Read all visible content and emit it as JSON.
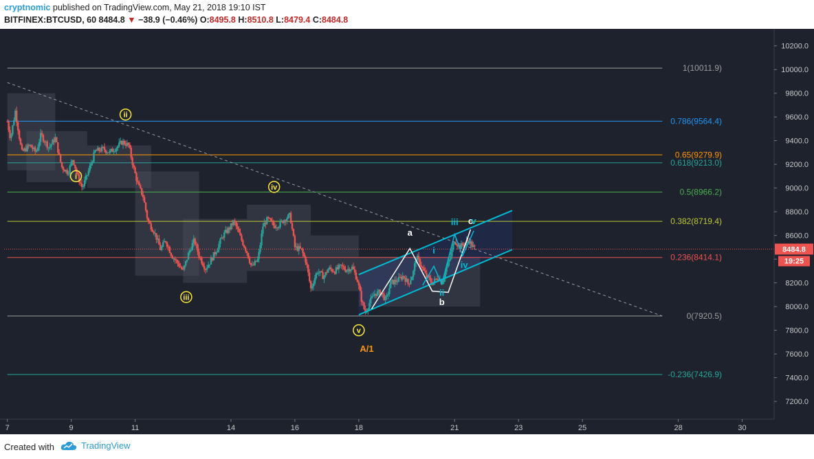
{
  "header": {
    "author": "cryptnomic",
    "published_text": "published on TradingView.com, May 21, 2018 19:10 IST",
    "symbol": "BITFINEX:BTCUSD, 60",
    "last": "8484.8",
    "change_arrow": "▼",
    "change": "−38.9 (−0.46%)",
    "o_label": "O:",
    "o_value": "8495.8",
    "h_label": "H:",
    "h_value": "8510.8",
    "l_label": "L:",
    "l_value": "8479.4",
    "c_label": "C:",
    "c_value": "8484.8"
  },
  "footer": {
    "created_with": "Created with",
    "brand": "TradingView",
    "brand_icon": "tradingview-cloud-icon"
  },
  "colors": {
    "background": "#1e222d",
    "bull": "#26a69a",
    "bear": "#ef5350",
    "channel": "#00bcd4",
    "wave_yellow": "#ffeb3b",
    "wave_orange": "#ff9800"
  },
  "chart_data": {
    "type": "candlestick",
    "ylim": [
      7050,
      10320
    ],
    "xlim": [
      6.9,
      31
    ],
    "x_ticks": [
      {
        "x": 7,
        "label": "7"
      },
      {
        "x": 9,
        "label": "9"
      },
      {
        "x": 11,
        "label": "11"
      },
      {
        "x": 14,
        "label": "14"
      },
      {
        "x": 16,
        "label": "16"
      },
      {
        "x": 18,
        "label": "18"
      },
      {
        "x": 21,
        "label": "21"
      },
      {
        "x": 23,
        "label": "23"
      },
      {
        "x": 25,
        "label": "25"
      },
      {
        "x": 28,
        "label": "28"
      },
      {
        "x": 30,
        "label": "30"
      }
    ],
    "y_ticks": [
      {
        "v": 10200,
        "label": "10200.0"
      },
      {
        "v": 10000,
        "label": "10000.0"
      },
      {
        "v": 9800,
        "label": "9800.0"
      },
      {
        "v": 9600,
        "label": "9600.0"
      },
      {
        "v": 9400,
        "label": "9400.0"
      },
      {
        "v": 9200,
        "label": "9200.0"
      },
      {
        "v": 9000,
        "label": "9000.0"
      },
      {
        "v": 8800,
        "label": "8800.0"
      },
      {
        "v": 8600,
        "label": "8600.0"
      },
      {
        "v": 8400,
        "label": "8400.0"
      },
      {
        "v": 8200,
        "label": "8200.0"
      },
      {
        "v": 8000,
        "label": "8000.0"
      },
      {
        "v": 7800,
        "label": "7800.0"
      },
      {
        "v": 7600,
        "label": "7600.0"
      },
      {
        "v": 7400,
        "label": "7400.0"
      },
      {
        "v": 7200,
        "label": "7200.0"
      }
    ],
    "fib_levels": [
      {
        "label": "1(10011.9)",
        "value": 10011.9,
        "color": "#9e9e9e"
      },
      {
        "label": "0.786(9564.4)",
        "value": 9564.4,
        "color": "#2196f3"
      },
      {
        "label": "0.65(9279.9)",
        "value": 9279.9,
        "color": "#ff9800"
      },
      {
        "label": "0.618(9213.0)",
        "value": 9213.0,
        "color": "#26a69a"
      },
      {
        "label": "0.5(8966.2)",
        "value": 8966.2,
        "color": "#4caf50"
      },
      {
        "label": "0.382(8719.4)",
        "value": 8719.4,
        "color": "#c0ca33"
      },
      {
        "label": "0.236(8414.1)",
        "value": 8414.1,
        "color": "#ef5350"
      },
      {
        "label": "0(7920.5)",
        "value": 7920.5,
        "color": "#9e9e9e"
      },
      {
        "label": "-0.236(7426.9)",
        "value": 7426.9,
        "color": "#26a69a"
      }
    ],
    "fib_x_range": [
      7,
      27.5
    ],
    "path_points": [
      [
        7.0,
        9560
      ],
      [
        7.1,
        9420
      ],
      [
        7.25,
        9650
      ],
      [
        7.45,
        9300
      ],
      [
        7.7,
        9360
      ],
      [
        7.9,
        9300
      ],
      [
        8.05,
        9450
      ],
      [
        8.3,
        9340
      ],
      [
        8.5,
        9420
      ],
      [
        8.7,
        9180
      ],
      [
        8.9,
        9130
      ],
      [
        9.05,
        9250
      ],
      [
        9.2,
        9100
      ],
      [
        9.35,
        9000
      ],
      [
        9.55,
        9150
      ],
      [
        9.75,
        9310
      ],
      [
        10.0,
        9330
      ],
      [
        10.2,
        9300
      ],
      [
        10.4,
        9340
      ],
      [
        10.6,
        9390
      ],
      [
        10.8,
        9360
      ],
      [
        10.95,
        9170
      ],
      [
        11.1,
        9020
      ],
      [
        11.25,
        8930
      ],
      [
        11.4,
        8720
      ],
      [
        11.6,
        8630
      ],
      [
        11.8,
        8480
      ],
      [
        11.95,
        8560
      ],
      [
        12.15,
        8430
      ],
      [
        12.35,
        8360
      ],
      [
        12.5,
        8300
      ],
      [
        12.7,
        8470
      ],
      [
        12.85,
        8560
      ],
      [
        13.0,
        8430
      ],
      [
        13.2,
        8320
      ],
      [
        13.35,
        8380
      ],
      [
        13.55,
        8480
      ],
      [
        13.75,
        8600
      ],
      [
        13.95,
        8660
      ],
      [
        14.1,
        8720
      ],
      [
        14.3,
        8580
      ],
      [
        14.5,
        8460
      ],
      [
        14.65,
        8330
      ],
      [
        14.85,
        8400
      ],
      [
        15.0,
        8680
      ],
      [
        15.15,
        8740
      ],
      [
        15.35,
        8680
      ],
      [
        15.5,
        8690
      ],
      [
        15.65,
        8730
      ],
      [
        15.85,
        8770
      ],
      [
        16.0,
        8500
      ],
      [
        16.2,
        8480
      ],
      [
        16.35,
        8380
      ],
      [
        16.5,
        8150
      ],
      [
        16.7,
        8300
      ],
      [
        16.9,
        8250
      ],
      [
        17.05,
        8320
      ],
      [
        17.25,
        8300
      ],
      [
        17.45,
        8340
      ],
      [
        17.6,
        8310
      ],
      [
        17.8,
        8330
      ],
      [
        17.95,
        8230
      ],
      [
        18.1,
        8040
      ],
      [
        18.2,
        7950
      ],
      [
        18.35,
        8040
      ],
      [
        18.5,
        8110
      ],
      [
        18.7,
        8120
      ],
      [
        18.85,
        8050
      ],
      [
        19.0,
        8200
      ],
      [
        19.2,
        8220
      ],
      [
        19.4,
        8260
      ],
      [
        19.55,
        8190
      ],
      [
        19.7,
        8280
      ],
      [
        19.8,
        8420
      ],
      [
        19.95,
        8350
      ],
      [
        20.1,
        8260
      ],
      [
        20.3,
        8200
      ],
      [
        20.5,
        8250
      ],
      [
        20.6,
        8200
      ],
      [
        20.75,
        8330
      ],
      [
        20.85,
        8400
      ],
      [
        21.0,
        8560
      ],
      [
        21.15,
        8500
      ],
      [
        21.3,
        8530
      ],
      [
        21.45,
        8560
      ],
      [
        21.55,
        8510
      ],
      [
        21.65,
        8485
      ]
    ],
    "cloud": [
      {
        "x0": 7.0,
        "x1": 8.5,
        "lo": 9150,
        "hi": 9800
      },
      {
        "x0": 7.6,
        "x1": 9.5,
        "lo": 9050,
        "hi": 9480
      },
      {
        "x0": 9.5,
        "x1": 11.5,
        "lo": 9000,
        "hi": 9360
      },
      {
        "x0": 11.0,
        "x1": 13.0,
        "lo": 8260,
        "hi": 9140
      },
      {
        "x0": 12.5,
        "x1": 14.5,
        "lo": 8200,
        "hi": 8740
      },
      {
        "x0": 14.5,
        "x1": 16.5,
        "lo": 8300,
        "hi": 8860
      },
      {
        "x0": 16.5,
        "x1": 18.0,
        "lo": 8130,
        "hi": 8600
      },
      {
        "x0": 18.0,
        "x1": 21.8,
        "lo": 8000,
        "hi": 8420
      }
    ],
    "trendline": {
      "x0": 7.0,
      "y0": 9890,
      "x1": 27.5,
      "y1": 7920
    },
    "channel": {
      "lower": {
        "x0": 18.0,
        "y0": 7930,
        "x1": 22.8,
        "y1": 8480
      },
      "upper": {
        "x0": 18.0,
        "y0": 8270,
        "x1": 22.8,
        "y1": 8810
      }
    },
    "zigzag_white": [
      [
        18.4,
        7980
      ],
      [
        19.6,
        8490
      ],
      [
        20.3,
        8130
      ],
      [
        20.8,
        8120
      ],
      [
        21.5,
        8650
      ]
    ],
    "zigzag_cyan": [
      [
        20.0,
        8180
      ],
      [
        20.35,
        8340
      ],
      [
        20.6,
        8190
      ],
      [
        21.0,
        8610
      ],
      [
        21.25,
        8430
      ],
      [
        21.6,
        8640
      ]
    ],
    "wave_labels": [
      {
        "text": "i",
        "x": 9.15,
        "y": 9100,
        "style": "circle-yellow"
      },
      {
        "text": "ii",
        "x": 10.7,
        "y": 9620,
        "style": "circle-yellow"
      },
      {
        "text": "iii",
        "x": 12.6,
        "y": 8080,
        "style": "circle-yellow"
      },
      {
        "text": "iv",
        "x": 15.35,
        "y": 9010,
        "style": "circle-yellow"
      },
      {
        "text": "v",
        "x": 18.0,
        "y": 7800,
        "style": "circle-yellow"
      },
      {
        "text": "A/1",
        "x": 18.25,
        "y": 7640,
        "style": "orange"
      },
      {
        "text": "a",
        "x": 19.6,
        "y": 8620,
        "style": "white"
      },
      {
        "text": "b",
        "x": 20.6,
        "y": 8035,
        "style": "white"
      },
      {
        "text": "c",
        "x": 21.5,
        "y": 8720,
        "style": "white"
      },
      {
        "text": "i",
        "x": 20.35,
        "y": 8470,
        "style": "cyan"
      },
      {
        "text": "ii",
        "x": 20.6,
        "y": 8115,
        "style": "cyan"
      },
      {
        "text": "iii",
        "x": 21.0,
        "y": 8710,
        "style": "cyan"
      },
      {
        "text": "iv",
        "x": 21.3,
        "y": 8350,
        "style": "cyan"
      },
      {
        "text": "v",
        "x": 21.6,
        "y": 8720,
        "style": "cyan"
      }
    ],
    "price_label": {
      "value": 8484.8,
      "text": "8484.8",
      "countdown": "19:25"
    },
    "last_price_line": 8484.8
  }
}
